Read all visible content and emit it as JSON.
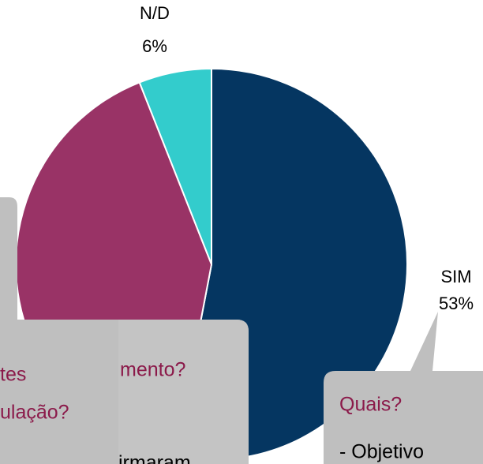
{
  "chart_data": {
    "type": "pie",
    "categories": [
      "SIM",
      null,
      "N/D"
    ],
    "values": [
      53,
      41,
      6
    ],
    "value_labels": [
      "53%",
      null,
      "6%"
    ],
    "colors": [
      "#053661",
      "#993366",
      "#33cccc"
    ],
    "annotations": [
      "tes",
      "ulação?",
      "mento?",
      "irmaram",
      "Quais?",
      "- Objetivo"
    ]
  }
}
